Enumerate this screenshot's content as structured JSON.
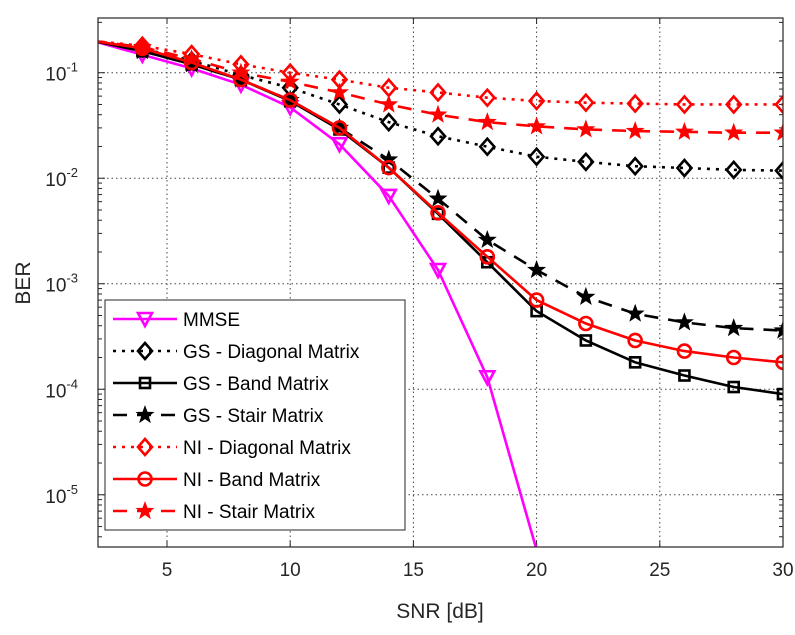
{
  "chart_data": {
    "type": "line",
    "title": "",
    "xlabel": "SNR [dB]",
    "ylabel": "BER",
    "xlim": [
      2.2,
      30
    ],
    "ylim": [
      3.2e-06,
      0.33
    ],
    "yscale": "log",
    "grid": true,
    "legend_position": "bottom-left",
    "xticks": [
      "5",
      "10",
      "15",
      "20",
      "25",
      "30"
    ],
    "yticks": [
      {
        "base": "10",
        "exp": "-1"
      },
      {
        "base": "10",
        "exp": "-2"
      },
      {
        "base": "10",
        "exp": "-3"
      },
      {
        "base": "10",
        "exp": "-4"
      },
      {
        "base": "10",
        "exp": "-5"
      }
    ],
    "x": [
      2,
      4,
      6,
      8,
      10,
      12,
      14,
      16,
      18,
      20,
      22,
      24,
      26,
      28,
      30
    ],
    "series": [
      {
        "name": "MMSE",
        "color": "#ff00ff",
        "dash": "solid",
        "marker": "triangle-down",
        "values": [
          0.2,
          0.148,
          0.11,
          0.077,
          0.047,
          0.021,
          0.0068,
          0.00135,
          0.00013,
          3e-06,
          null,
          null,
          null,
          null,
          null
        ]
      },
      {
        "name": "GS - Diagonal Matrix",
        "color": "#000000",
        "dash": "dotted",
        "marker": "diamond",
        "values": [
          0.2,
          0.17,
          0.13,
          0.095,
          0.072,
          0.05,
          0.034,
          0.025,
          0.0199,
          0.016,
          0.0143,
          0.013,
          0.0125,
          0.012,
          0.0118
        ]
      },
      {
        "name": "GS - Band Matrix",
        "color": "#000000",
        "dash": "solid",
        "marker": "square",
        "values": [
          0.2,
          0.16,
          0.12,
          0.086,
          0.054,
          0.029,
          0.0126,
          0.0046,
          0.0016,
          0.00055,
          0.00029,
          0.00018,
          0.000135,
          0.000105,
          9e-05
        ]
      },
      {
        "name": "GS - Stair Matrix",
        "color": "#000000",
        "dash": "dashed",
        "marker": "star",
        "values": [
          0.2,
          0.16,
          0.12,
          0.086,
          0.055,
          0.03,
          0.015,
          0.0064,
          0.0026,
          0.00135,
          0.00075,
          0.00052,
          0.00043,
          0.00038,
          0.00036
        ]
      },
      {
        "name": "NI - Diagonal Matrix",
        "color": "#ff0000",
        "dash": "dotted",
        "marker": "diamond",
        "values": [
          0.2,
          0.18,
          0.15,
          0.12,
          0.1,
          0.086,
          0.072,
          0.065,
          0.058,
          0.054,
          0.052,
          0.051,
          0.05,
          0.05,
          0.05
        ]
      },
      {
        "name": "NI - Band Matrix",
        "color": "#ff0000",
        "dash": "solid",
        "marker": "circle",
        "values": [
          0.2,
          0.17,
          0.125,
          0.086,
          0.055,
          0.03,
          0.0126,
          0.0047,
          0.0018,
          0.0007,
          0.00042,
          0.00029,
          0.00023,
          0.0002,
          0.00018
        ]
      },
      {
        "name": "NI - Stair Matrix",
        "color": "#ff0000",
        "dash": "dashed",
        "marker": "star",
        "values": [
          0.2,
          0.175,
          0.135,
          0.1,
          0.082,
          0.065,
          0.05,
          0.04,
          0.034,
          0.031,
          0.029,
          0.028,
          0.0275,
          0.027,
          0.027
        ]
      }
    ]
  }
}
